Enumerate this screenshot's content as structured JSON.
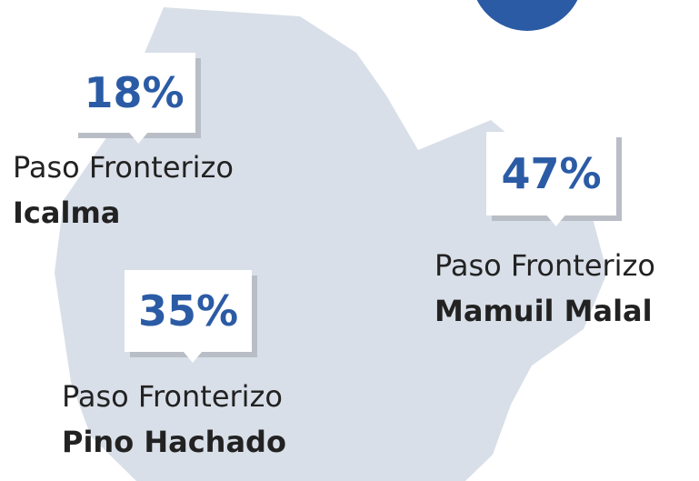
{
  "callouts": [
    {
      "value_label": "18%",
      "prefix": "Paso Fronterizo",
      "name": "Icalma"
    },
    {
      "value_label": "47%",
      "prefix": "Paso Fronterizo",
      "name": "Mamuil Malal"
    },
    {
      "value_label": "35%",
      "prefix": "Paso Fronterizo",
      "name": "Pino Hachado"
    }
  ]
}
